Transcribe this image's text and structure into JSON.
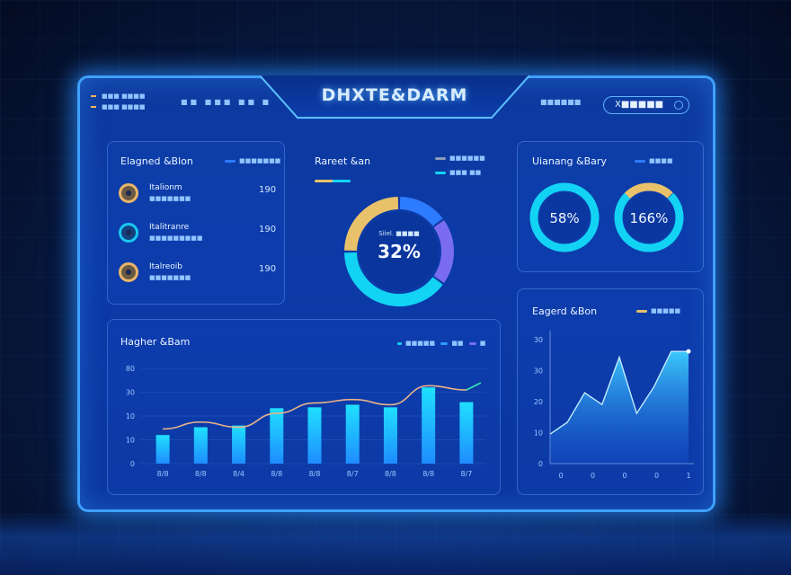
{
  "header": {
    "title": "DHXTE&DARM",
    "left_lines": [
      "■■■ ■■■■",
      "■■■ ■■■■"
    ],
    "mid_text": "■■  ■■■  ■■  ■",
    "right_text": "■■■■■■",
    "search_value": "X■■■■■"
  },
  "panel_list": {
    "title": "Elagned &Blon",
    "legend": "■■■■■■■",
    "items": [
      {
        "name": "Italionm",
        "sub": "■■■■■■■",
        "value": "190",
        "color": "#e9b569"
      },
      {
        "name": "Italitranre",
        "sub": "■■■■■■■■■",
        "value": "190",
        "color": "#19c7f2"
      },
      {
        "name": "Italreoib",
        "sub": "■■■■■■■",
        "value": "190",
        "color": "#e9b569"
      }
    ]
  },
  "panel_donut": {
    "title": "Rareet &an",
    "legend": [
      "■■■■■■",
      "■■■ ■■"
    ],
    "center_label": "Siiel. ■■■■",
    "center_value": "32%",
    "segments": [
      {
        "value": 15,
        "color": "#2d7bff"
      },
      {
        "value": 20,
        "color": "#7a6cf0"
      },
      {
        "value": 40,
        "color": "#13d3f5"
      },
      {
        "value": 25,
        "color": "#e9c16b"
      }
    ]
  },
  "panel_rings": {
    "title": "Uianang &Bary",
    "legend": "■■■■",
    "rings": [
      {
        "value": "58%",
        "percent": 100,
        "color": "#13d3f5"
      },
      {
        "value": "166%",
        "percent": 75,
        "color": "#13d3f5",
        "accent": "#e9c16b"
      }
    ]
  },
  "panel_bar": {
    "title": "Hagher &Bam",
    "legend": [
      "■■■■■",
      "■■",
      "■"
    ],
    "y_ticks": [
      "80",
      "30",
      "10",
      "10",
      "0"
    ]
  },
  "panel_area": {
    "title": "Eagerd &Bon",
    "legend": "■■■■■",
    "y_ticks": [
      "30",
      "30",
      "20",
      "10",
      "0"
    ],
    "x_ticks": [
      "0",
      "0",
      "0",
      "0",
      "1"
    ]
  },
  "chart_data": [
    {
      "type": "bar",
      "title": "Hagher &Bam",
      "categories": [
        "8/8",
        "8/8",
        "8/4",
        "8/8",
        "8/8",
        "8/7",
        "8/8",
        "8/8",
        "8/7"
      ],
      "series": [
        {
          "values": [
            33,
            42,
            44,
            64,
            65,
            68,
            65,
            88,
            71
          ]
        },
        {
          "values": [
            40,
            48,
            42,
            58,
            70,
            74,
            68,
            90,
            85
          ]
        }
      ],
      "ylim": [
        0,
        110
      ]
    },
    {
      "type": "area",
      "title": "Eagerd &Bon",
      "x": [
        0,
        1,
        2,
        3,
        4,
        5,
        6,
        7,
        8
      ],
      "values": [
        10,
        14,
        24,
        20,
        36,
        17,
        26,
        38,
        38
      ],
      "ylim": [
        0,
        42
      ]
    }
  ]
}
